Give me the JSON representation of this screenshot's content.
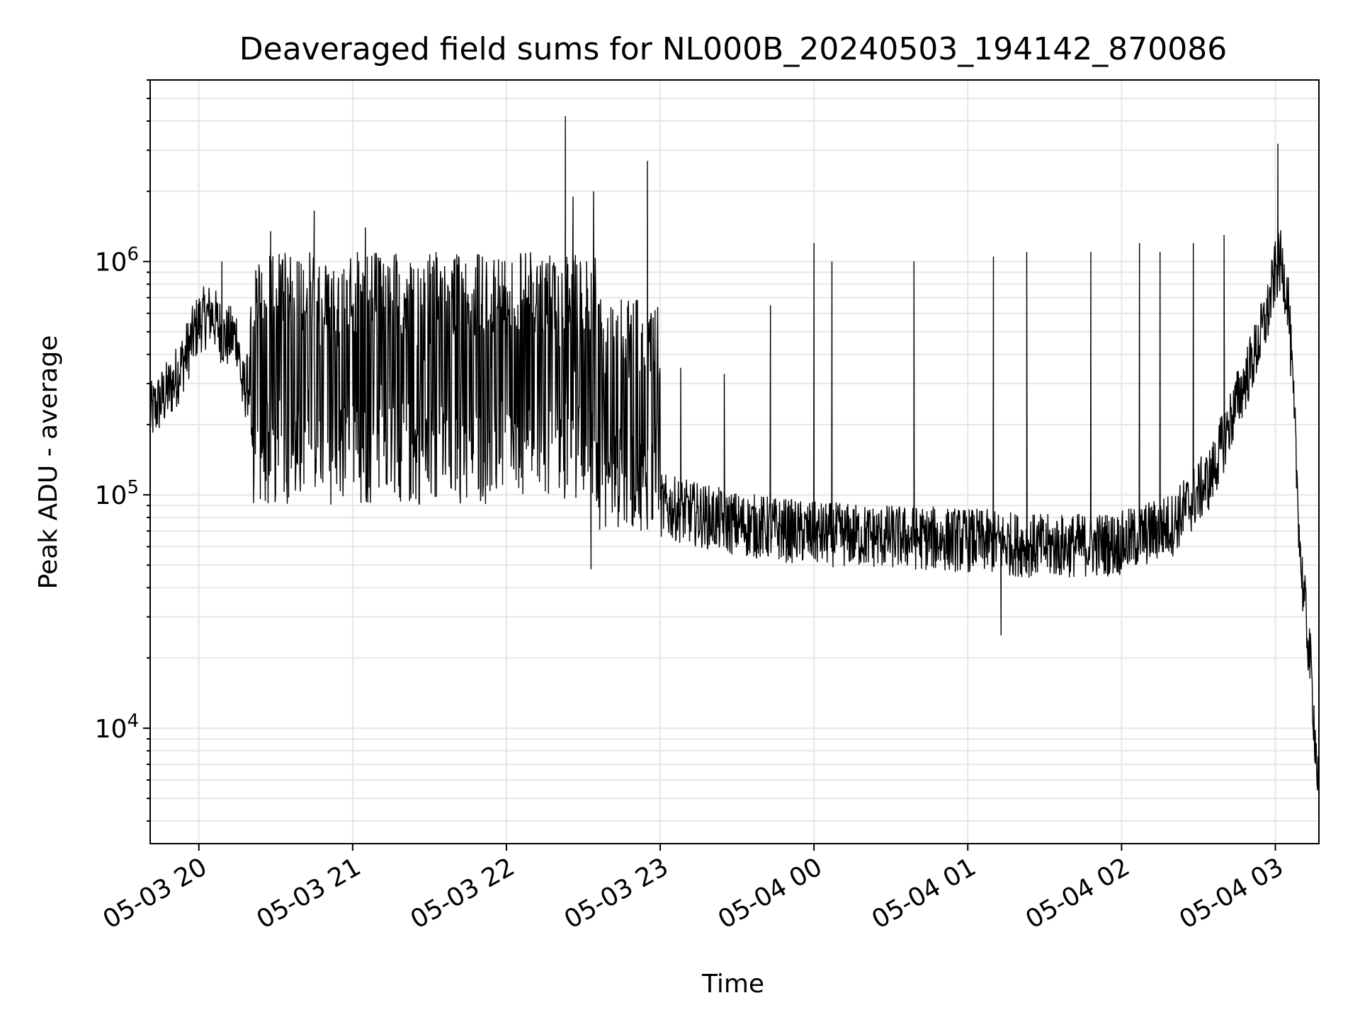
{
  "chart_data": {
    "type": "line",
    "title": "Deaveraged field sums for NL000B_20240503_194142_870086",
    "xlabel": "Time",
    "ylabel": "Peak ADU - average",
    "yscale": "log",
    "ylim": [
      3200,
      6000000
    ],
    "xlim": [
      "2024-05-03 19:41",
      "2024-05-04 03:17"
    ],
    "grid": true,
    "line_color": "#000000",
    "y_tick_labels": [
      {
        "base": "10",
        "exp": "4",
        "value": 10000
      },
      {
        "base": "10",
        "exp": "5",
        "value": 100000
      },
      {
        "base": "10",
        "exp": "6",
        "value": 1000000
      }
    ],
    "x_ticks": [
      {
        "label": "05-03 20",
        "time": "2024-05-03 20:00"
      },
      {
        "label": "05-03 21",
        "time": "2024-05-03 21:00"
      },
      {
        "label": "05-03 22",
        "time": "2024-05-03 22:00"
      },
      {
        "label": "05-03 23",
        "time": "2024-05-03 23:00"
      },
      {
        "label": "05-04 00",
        "time": "2024-05-04 00:00"
      },
      {
        "label": "05-04 01",
        "time": "2024-05-04 01:00"
      },
      {
        "label": "05-04 02",
        "time": "2024-05-04 02:00"
      },
      {
        "label": "05-04 03",
        "time": "2024-05-04 03:00"
      }
    ],
    "series": [
      {
        "baseline": [
          {
            "time": "2024-05-03 19:41",
            "value": 220000
          },
          {
            "time": "2024-05-03 19:50",
            "value": 300000
          },
          {
            "time": "2024-05-03 19:55",
            "value": 400000
          },
          {
            "time": "2024-05-03 20:00",
            "value": 550000
          },
          {
            "time": "2024-05-03 20:05",
            "value": 600000
          },
          {
            "time": "2024-05-03 20:10",
            "value": 470000
          },
          {
            "time": "2024-05-03 20:15",
            "value": 480000
          },
          {
            "time": "2024-05-03 20:17",
            "value": 280000
          },
          {
            "time": "2024-05-03 20:25",
            "value": 350000
          },
          {
            "time": "2024-05-03 21:00",
            "value": 350000
          },
          {
            "time": "2024-05-03 22:00",
            "value": 350000
          },
          {
            "time": "2024-05-03 22:34",
            "value": 350000
          },
          {
            "time": "2024-05-03 22:50",
            "value": 180000
          },
          {
            "time": "2024-05-03 23:00",
            "value": 90000
          },
          {
            "time": "2024-05-03 23:30",
            "value": 75000
          },
          {
            "time": "2024-05-04 00:00",
            "value": 68000
          },
          {
            "time": "2024-05-04 00:30",
            "value": 66000
          },
          {
            "time": "2024-05-04 01:00",
            "value": 64000
          },
          {
            "time": "2024-05-04 01:30",
            "value": 60000
          },
          {
            "time": "2024-05-04 02:00",
            "value": 62000
          },
          {
            "time": "2024-05-04 02:20",
            "value": 75000
          },
          {
            "time": "2024-05-04 02:35",
            "value": 120000
          },
          {
            "time": "2024-05-04 02:45",
            "value": 250000
          },
          {
            "time": "2024-05-04 02:52",
            "value": 400000
          },
          {
            "time": "2024-05-04 02:57",
            "value": 600000
          },
          {
            "time": "2024-05-04 03:00",
            "value": 900000
          },
          {
            "time": "2024-05-04 03:02",
            "value": 1000000
          },
          {
            "time": "2024-05-04 03:05",
            "value": 700000
          },
          {
            "time": "2024-05-04 03:08",
            "value": 150000
          },
          {
            "time": "2024-05-04 03:10",
            "value": 50000
          },
          {
            "time": "2024-05-04 03:14",
            "value": 17000
          },
          {
            "time": "2024-05-04 03:17",
            "value": 5000
          }
        ],
        "band_ranges": [
          {
            "start": "2024-05-03 20:20",
            "end": "2024-05-03 22:35",
            "low": 90000,
            "high": 1100000
          },
          {
            "start": "2024-05-03 22:35",
            "end": "2024-05-03 23:00",
            "low": 70000,
            "high": 700000
          }
        ],
        "spikes": [
          {
            "time": "2024-05-03 20:09",
            "value": 1000000
          },
          {
            "time": "2024-05-03 20:28",
            "value": 1350000
          },
          {
            "time": "2024-05-03 20:27",
            "value": 92000
          },
          {
            "time": "2024-05-03 20:45",
            "value": 1650000
          },
          {
            "time": "2024-05-03 21:05",
            "value": 1400000
          },
          {
            "time": "2024-05-03 22:23",
            "value": 4200000
          },
          {
            "time": "2024-05-03 22:26",
            "value": 1900000
          },
          {
            "time": "2024-05-03 22:34",
            "value": 2000000
          },
          {
            "time": "2024-05-03 22:55",
            "value": 2700000
          },
          {
            "time": "2024-05-03 22:33",
            "value": 48000
          },
          {
            "time": "2024-05-03 23:08",
            "value": 350000
          },
          {
            "time": "2024-05-03 23:25",
            "value": 330000
          },
          {
            "time": "2024-05-03 23:43",
            "value": 650000
          },
          {
            "time": "2024-05-04 00:00",
            "value": 1200000
          },
          {
            "time": "2024-05-04 00:07",
            "value": 1000000
          },
          {
            "time": "2024-05-04 00:39",
            "value": 1000000
          },
          {
            "time": "2024-05-04 01:10",
            "value": 1050000
          },
          {
            "time": "2024-05-04 01:13",
            "value": 25000
          },
          {
            "time": "2024-05-04 01:23",
            "value": 1100000
          },
          {
            "time": "2024-05-04 01:48",
            "value": 1100000
          },
          {
            "time": "2024-05-04 02:07",
            "value": 1200000
          },
          {
            "time": "2024-05-04 02:15",
            "value": 1100000
          },
          {
            "time": "2024-05-04 02:28",
            "value": 1200000
          },
          {
            "time": "2024-05-04 02:40",
            "value": 1300000
          },
          {
            "time": "2024-05-04 03:01",
            "value": 3200000
          }
        ]
      }
    ]
  }
}
